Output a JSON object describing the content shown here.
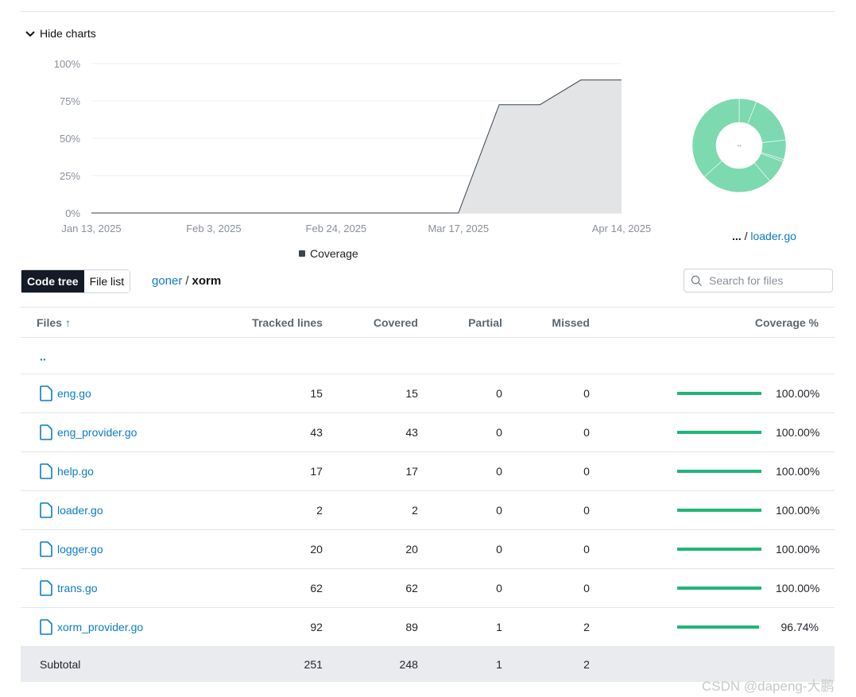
{
  "toggle": {
    "label": "Hide charts"
  },
  "chart_data": {
    "type": "area",
    "x": [
      "2025-01-13",
      "2025-01-20",
      "2025-01-27",
      "2025-02-03",
      "2025-02-10",
      "2025-02-17",
      "2025-02-24",
      "2025-03-03",
      "2025-03-10",
      "2025-03-17",
      "2025-03-24",
      "2025-03-31",
      "2025-04-07",
      "2025-04-14"
    ],
    "series": [
      {
        "name": "Coverage",
        "values": [
          0,
          0,
          0,
          0,
          0,
          0,
          0,
          0,
          0,
          0,
          72.5,
          72.5,
          89,
          89
        ]
      }
    ],
    "xtick_labels": [
      "Jan 13, 2025",
      "Feb 3, 2025",
      "Feb 24, 2025",
      "Mar 17, 2025",
      "Apr 14, 2025"
    ],
    "ytick_labels": [
      "0%",
      "25%",
      "50%",
      "75%",
      "100%"
    ],
    "ylim": [
      0,
      100
    ],
    "grid": true,
    "legend": "bottom-center"
  },
  "sunburst": {
    "center_label": "..",
    "crumb_root": "...",
    "crumb_sep": "/",
    "crumb_file": "loader.go"
  },
  "view_toggle": {
    "code_tree": "Code tree",
    "file_list": "File list"
  },
  "path": {
    "root": "goner",
    "sep": "/",
    "current": "xorm"
  },
  "search": {
    "placeholder": "Search for files"
  },
  "table": {
    "headers": {
      "files": "Files",
      "tracked": "Tracked lines",
      "covered": "Covered",
      "partial": "Partial",
      "missed": "Missed",
      "coverage": "Coverage %"
    },
    "sort_arrow": "↑",
    "parent": "..",
    "rows": [
      {
        "name": "eng.go",
        "tracked": "15",
        "covered": "15",
        "partial": "0",
        "missed": "0",
        "coverage": "100.00%",
        "fraction": 1.0
      },
      {
        "name": "eng_provider.go",
        "tracked": "43",
        "covered": "43",
        "partial": "0",
        "missed": "0",
        "coverage": "100.00%",
        "fraction": 1.0
      },
      {
        "name": "help.go",
        "tracked": "17",
        "covered": "17",
        "partial": "0",
        "missed": "0",
        "coverage": "100.00%",
        "fraction": 1.0
      },
      {
        "name": "loader.go",
        "tracked": "2",
        "covered": "2",
        "partial": "0",
        "missed": "0",
        "coverage": "100.00%",
        "fraction": 1.0
      },
      {
        "name": "logger.go",
        "tracked": "20",
        "covered": "20",
        "partial": "0",
        "missed": "0",
        "coverage": "100.00%",
        "fraction": 1.0
      },
      {
        "name": "trans.go",
        "tracked": "62",
        "covered": "62",
        "partial": "0",
        "missed": "0",
        "coverage": "100.00%",
        "fraction": 1.0
      },
      {
        "name": "xorm_provider.go",
        "tracked": "92",
        "covered": "89",
        "partial": "1",
        "missed": "2",
        "coverage": "96.74%",
        "fraction": 0.9674
      }
    ],
    "subtotal": {
      "label": "Subtotal",
      "tracked": "251",
      "covered": "248",
      "partial": "1",
      "missed": "2"
    }
  },
  "watermark": "CSDN @dapeng-大鹏",
  "colors": {
    "accent": "#0a7cc1",
    "bar_fill": "#21b577",
    "sunburst": "#7dd9b0",
    "area_fill": "#e3e4e6",
    "area_line": "#3b4351"
  }
}
